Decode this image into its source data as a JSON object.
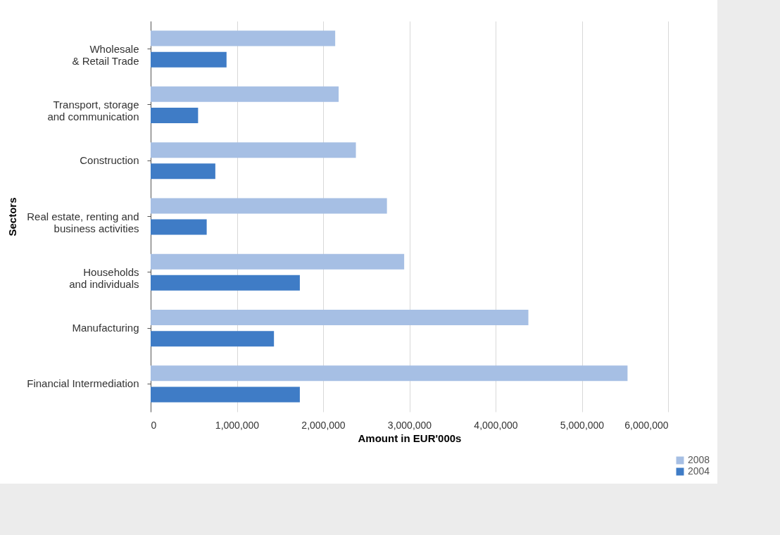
{
  "chart_data": {
    "type": "bar",
    "orientation": "horizontal",
    "xlabel": "Amount in EUR'000s",
    "ylabel": "Sectors",
    "categories": [
      "Wholesale\n& Retail Trade",
      "Transport, storage\nand communication",
      "Construction",
      "Real estate, renting and\nbusiness activities",
      "Households\nand individuals",
      "Manufacturing",
      "Financial Intermediation"
    ],
    "series": [
      {
        "name": "2008",
        "color": "#a6bfe4",
        "values": [
          2140000,
          2180000,
          2380000,
          2740000,
          2940000,
          4380000,
          5530000
        ]
      },
      {
        "name": "2004",
        "color": "#3f7cc6",
        "values": [
          880000,
          550000,
          750000,
          650000,
          1730000,
          1430000,
          1730000
        ]
      }
    ],
    "xlim": [
      0,
      6000000
    ],
    "xticks": [
      0,
      {
        "value": 1000000,
        "label": "1,000,000"
      },
      {
        "value": 2000000,
        "label": "2,000,000"
      },
      {
        "value": 3000000,
        "label": "3,000,000"
      },
      {
        "value": 4000000,
        "label": "4,000,000"
      },
      {
        "value": 5000000,
        "label": "5,000,000"
      },
      {
        "value": 6000000,
        "label": "6,000,000"
      }
    ],
    "grid": "x",
    "legend": "bottom right"
  }
}
